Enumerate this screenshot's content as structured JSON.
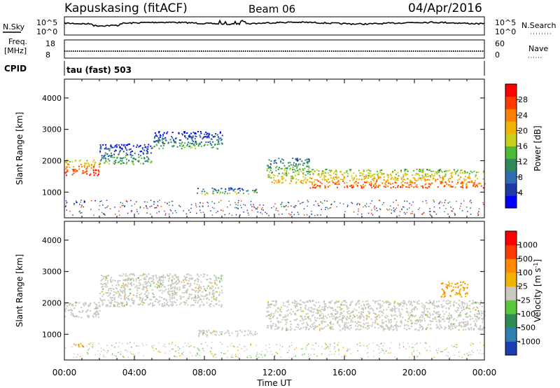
{
  "header": {
    "station": "Kapuskasing (fitACF)",
    "beam": "Beam 06",
    "date": "04/Apr/2016"
  },
  "noise_panel": {
    "left_label": "N.Sky",
    "right_label": "N.Search",
    "left_ticks": [
      "10^5",
      "10^0"
    ],
    "right_ticks": [
      "10^5",
      "10^0"
    ]
  },
  "freq_panel": {
    "left_label_line1": "Freq.",
    "left_label_line2": "[MHz]",
    "left_ticks": [
      "18",
      "8"
    ],
    "right_label": "Nave",
    "right_ticks": [
      "60",
      "0"
    ]
  },
  "cpid": {
    "label": "CPID",
    "mode": "tau (fast) 503"
  },
  "chart_data": [
    {
      "type": "heatmap",
      "name": "power",
      "ylabel": "Slant Range [km]",
      "ylim": [
        180,
        4600
      ],
      "yticks": [
        "1000",
        "2000",
        "3000",
        "4000"
      ],
      "xlim": [
        0,
        24
      ],
      "colorbar": {
        "label": "Power [dB]",
        "ticks": [
          "4",
          "8",
          "12",
          "16",
          "20",
          "24",
          "28"
        ],
        "colors": [
          "#0000ff",
          "#1f3aa6",
          "#2f6fb0",
          "#2e8b57",
          "#4cbb3a",
          "#c8d21e",
          "#f0b400",
          "#ff7f00",
          "#ff3a00",
          "#ff0000"
        ]
      },
      "regions": [
        {
          "t0": 0.0,
          "t1": 2.0,
          "r0": 1550,
          "r1": 2050,
          "level": 22
        },
        {
          "t0": 2.0,
          "t1": 5.0,
          "r0": 1900,
          "r1": 2550,
          "level": 6
        },
        {
          "t0": 5.0,
          "t1": 9.0,
          "r0": 2400,
          "r1": 2950,
          "level": 5
        },
        {
          "t0": 7.5,
          "t1": 11.0,
          "r0": 950,
          "r1": 1150,
          "level": 8
        },
        {
          "t0": 0.5,
          "t1": 1.2,
          "r0": 620,
          "r1": 720,
          "level": 7
        },
        {
          "t0": 11.5,
          "t1": 14.0,
          "r0": 1300,
          "r1": 2100,
          "level": 14
        },
        {
          "t0": 14.0,
          "t1": 24.0,
          "r0": 1150,
          "r1": 1750,
          "level": 20
        }
      ]
    },
    {
      "type": "heatmap",
      "name": "velocity",
      "ylabel": "Slant Range [km]",
      "ylim": [
        180,
        4600
      ],
      "yticks": [
        "1000",
        "2000",
        "3000",
        "4000"
      ],
      "xlim": [
        0,
        24
      ],
      "colorbar": {
        "label": "Velocity [m s^-1]",
        "ticks": [
          "1000",
          "500",
          "100",
          "25",
          "-25",
          "-100",
          "-500",
          "-1000"
        ],
        "colors": [
          "#1a3db5",
          "#2f7fb0",
          "#2e8b57",
          "#5cc83c",
          "#c9c9c0",
          "#f0b400",
          "#ff8c00",
          "#ff3a00",
          "#ff0000"
        ]
      },
      "regions": [
        {
          "t0": 0.0,
          "t1": 2.0,
          "r0": 1550,
          "r1": 2050,
          "level": 0
        },
        {
          "t0": 2.0,
          "t1": 9.0,
          "r0": 1900,
          "r1": 2950,
          "level": 0
        },
        {
          "t0": 7.5,
          "t1": 11.0,
          "r0": 950,
          "r1": 1150,
          "level": 0
        },
        {
          "t0": 0.5,
          "t1": 1.2,
          "r0": 620,
          "r1": 720,
          "level": -300
        },
        {
          "t0": 11.5,
          "t1": 24.0,
          "r0": 1150,
          "r1": 2100,
          "level": 0
        },
        {
          "t0": 21.5,
          "t1": 23.0,
          "r0": 2200,
          "r1": 2700,
          "level": -300
        }
      ]
    }
  ],
  "xaxis": {
    "label": "Time UT",
    "ticks": [
      "00:00",
      "04:00",
      "08:00",
      "12:00",
      "16:00",
      "20:00",
      "00:00"
    ]
  }
}
